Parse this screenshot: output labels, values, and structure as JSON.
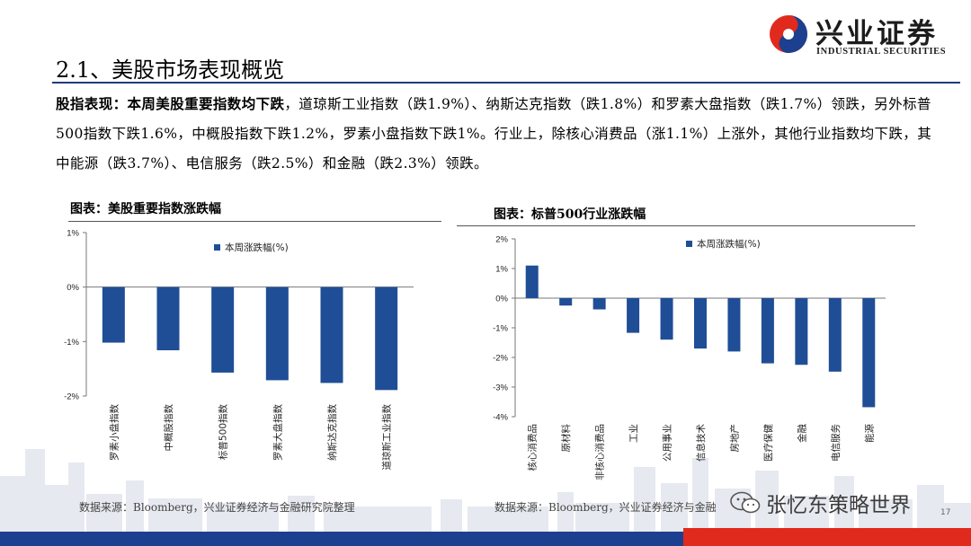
{
  "header": {
    "logo_cn": "兴业证券",
    "logo_en": "INDUSTRIAL SECURITIES"
  },
  "section_title": "2.1、美股市场表现概览",
  "paragraph": {
    "lead": "股指表现：本周美股重要指数均下跌",
    "body": "，道琼斯工业指数（跌1.9%）、纳斯达克指数（跌1.8%）和罗素大盘指数（跌1.7%）领跌，另外标普500指数下跌1.6%，中概股指数下跌1.2%，罗素小盘指数下跌1%。行业上，除核心消费品（涨1.1%）上涨外，其他行业指数均下跌，其中能源（跌3.7%）、电信服务（跌2.5%）和金融（跌2.3%）领跌。"
  },
  "chart_data": [
    {
      "type": "bar",
      "title": "图表：美股重要指数涨跌幅",
      "categories": [
        "罗素小盘指数",
        "中概股指数",
        "标普500指数",
        "罗素大盘指数",
        "纳斯达克指数",
        "道琼斯工业指数"
      ],
      "series": [
        {
          "name": "本周涨跌幅(%)",
          "values": [
            -1.02,
            -1.16,
            -1.57,
            -1.71,
            -1.76,
            -1.89
          ]
        }
      ],
      "y_ticks": [
        "1%",
        "0%",
        "-1%",
        "-2%"
      ],
      "ylim": [
        -2,
        1
      ],
      "legend": "top-center",
      "color": "#1f4e96",
      "source": "数据来源：Bloomberg，兴业证券经济与金融研究院整理"
    },
    {
      "type": "bar",
      "title": "图表：标普500行业涨跌幅",
      "categories": [
        "核心消费品",
        "原材料",
        "非核心消费品",
        "工业",
        "公用事业",
        "信息技术",
        "房地产",
        "医疗保健",
        "金融",
        "电信服务",
        "能源"
      ],
      "series": [
        {
          "name": "本周涨跌幅(%)",
          "values": [
            1.1,
            -0.25,
            -0.38,
            -1.17,
            -1.4,
            -1.7,
            -1.8,
            -2.2,
            -2.25,
            -2.48,
            -3.68
          ]
        }
      ],
      "y_ticks": [
        "2%",
        "1%",
        "0%",
        "-1%",
        "-2%",
        "-3%",
        "-4%"
      ],
      "ylim": [
        -4,
        2
      ],
      "legend": "top-center",
      "color": "#1f4e96",
      "source": "数据来源：Bloomberg，兴业证券经济与金融"
    }
  ],
  "watermark": "张忆东策略世界",
  "page_number": "17"
}
